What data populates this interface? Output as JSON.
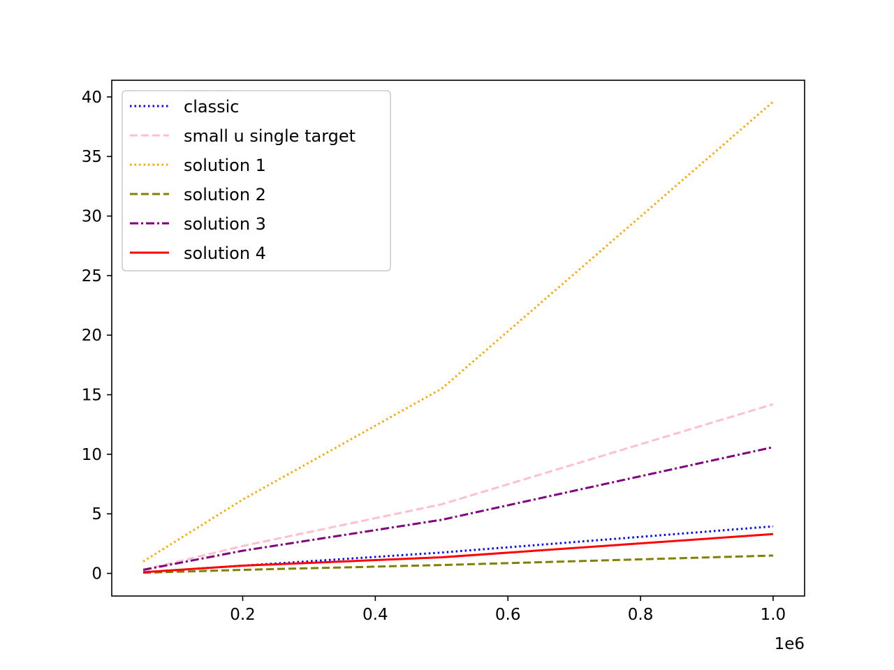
{
  "chart_data": {
    "type": "line",
    "title": "",
    "xlabel": "",
    "ylabel": "",
    "x_offset_label": "1e6",
    "xlim": [
      0.0025,
      1.0475
    ],
    "ylim": [
      -1.9,
      41.4
    ],
    "x_ticks": [
      0.2,
      0.4,
      0.6,
      0.8,
      1.0
    ],
    "x_tick_labels": [
      "0.2",
      "0.4",
      "0.6",
      "0.8",
      "1.0"
    ],
    "y_ticks": [
      0,
      5,
      10,
      15,
      20,
      25,
      30,
      35,
      40
    ],
    "y_tick_labels": [
      "0",
      "5",
      "10",
      "15",
      "20",
      "25",
      "30",
      "35",
      "40"
    ],
    "grid": false,
    "legend_position": "upper-left",
    "x": [
      0.05,
      0.2,
      0.5,
      1.0
    ],
    "series": [
      {
        "name": "classic",
        "values": [
          0.1,
          0.65,
          1.75,
          3.95
        ],
        "color": "#0000ff",
        "style": "dotted"
      },
      {
        "name": "small u single target",
        "values": [
          0.3,
          2.3,
          5.8,
          14.2
        ],
        "color": "#ffc0cb",
        "style": "dashed"
      },
      {
        "name": "solution 1",
        "values": [
          1.0,
          6.2,
          15.5,
          39.6
        ],
        "color": "#ffa500",
        "style": "dotted"
      },
      {
        "name": "solution 2",
        "values": [
          0.05,
          0.3,
          0.7,
          1.5
        ],
        "color": "#808000",
        "style": "dashed"
      },
      {
        "name": "solution 3",
        "values": [
          0.3,
          1.9,
          4.5,
          10.6
        ],
        "color": "#800080",
        "style": "dashdot"
      },
      {
        "name": "solution 4",
        "values": [
          0.1,
          0.65,
          1.35,
          3.3
        ],
        "color": "#ff0000",
        "style": "solid"
      }
    ]
  }
}
